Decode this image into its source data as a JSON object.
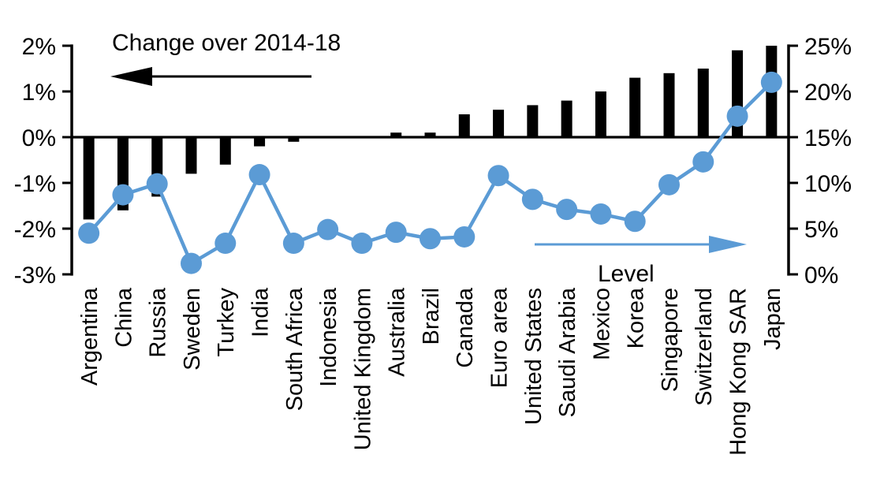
{
  "chart_data": {
    "type": "combo (bar + line, dual axis)",
    "title": "",
    "categories": [
      "Argentina",
      "China",
      "Russia",
      "Sweden",
      "Turkey",
      "India",
      "South Africa",
      "Indonesia",
      "United Kingdom",
      "Australia",
      "Brazil",
      "Canada",
      "Euro area",
      "United States",
      "Saudi Arabia",
      "Mexico",
      "Korea",
      "Singapore",
      "Switzerland",
      "Hong Kong SAR",
      "Japan"
    ],
    "series": [
      {
        "name": "Change over 2014-18",
        "chart_type": "bar",
        "axis": "left",
        "color": "#000000",
        "values": [
          -1.8,
          -1.6,
          -1.3,
          -0.8,
          -0.6,
          -0.2,
          -0.1,
          0,
          0,
          0.1,
          0.1,
          0.5,
          0.6,
          0.7,
          0.8,
          1.0,
          1.3,
          1.4,
          1.5,
          1.9,
          2.0
        ]
      },
      {
        "name": "Level",
        "chart_type": "line",
        "axis": "right",
        "color": "#5B9BD5",
        "values": [
          4.5,
          8.7,
          9.9,
          1.2,
          3.4,
          10.9,
          3.4,
          4.9,
          3.4,
          4.6,
          3.9,
          4.1,
          10.8,
          8.2,
          7.1,
          6.6,
          5.8,
          9.8,
          12.3,
          17.3,
          21.0
        ]
      }
    ],
    "left_axis": {
      "min": -3,
      "max": 2,
      "tick_values": [
        2,
        1,
        0,
        -1,
        -2,
        -3
      ],
      "tick_labels": [
        "2%",
        "1%",
        "0%",
        "-1%",
        "-2%",
        "-3%"
      ]
    },
    "right_axis": {
      "min": 0,
      "max": 25,
      "tick_values": [
        25,
        20,
        15,
        10,
        5,
        0
      ],
      "tick_labels": [
        "25%",
        "20%",
        "15%",
        "10%",
        "5%",
        "0%"
      ]
    },
    "annotations": {
      "left": {
        "text": "Change over 2014-18",
        "arrow_direction": "left",
        "arrow_color": "#000000"
      },
      "right": {
        "text": "Level",
        "arrow_direction": "right",
        "arrow_color": "#5B9BD5"
      }
    },
    "grid": "off",
    "legend_position": "none (in-plot labels with arrows)",
    "baseline": "zero line of left axis aligns with 15% on right axis"
  }
}
